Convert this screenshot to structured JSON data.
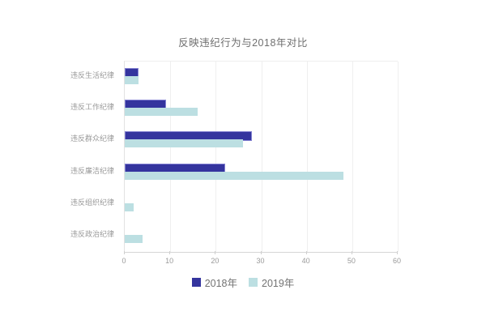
{
  "title": "反映违纪行为与2018年对比",
  "colors": {
    "series_2018": "#34349e",
    "series_2018_border": "#8482d2",
    "series_2019": "#bcdfe2",
    "gridline": "#efefef",
    "axis": "#d6d6d6",
    "label_text": "#9a9a9a",
    "title_text": "#6f6f6f"
  },
  "chart_data": {
    "type": "bar",
    "orientation": "horizontal",
    "title": "反映违纪行为与2018年对比",
    "categories": [
      "违反生活纪律",
      "违反工作纪律",
      "违反群众纪律",
      "违反廉洁纪律",
      "违反组织纪律",
      "违反政治纪律"
    ],
    "series": [
      {
        "name": "2018年",
        "color": "#34349e",
        "values": [
          3,
          9,
          28,
          22,
          0,
          0
        ]
      },
      {
        "name": "2019年",
        "color": "#bcdfe2",
        "values": [
          3,
          16,
          26,
          48,
          2,
          4
        ]
      }
    ],
    "xlabel": "",
    "ylabel": "",
    "xlim": [
      0,
      60
    ],
    "x_ticks": [
      0,
      10,
      20,
      30,
      40,
      50,
      60
    ],
    "grid": true,
    "legend_position": "bottom"
  },
  "legend": {
    "items": [
      {
        "label": "2018年",
        "color": "#34349e"
      },
      {
        "label": "2019年",
        "color": "#bcdfe2"
      }
    ]
  }
}
